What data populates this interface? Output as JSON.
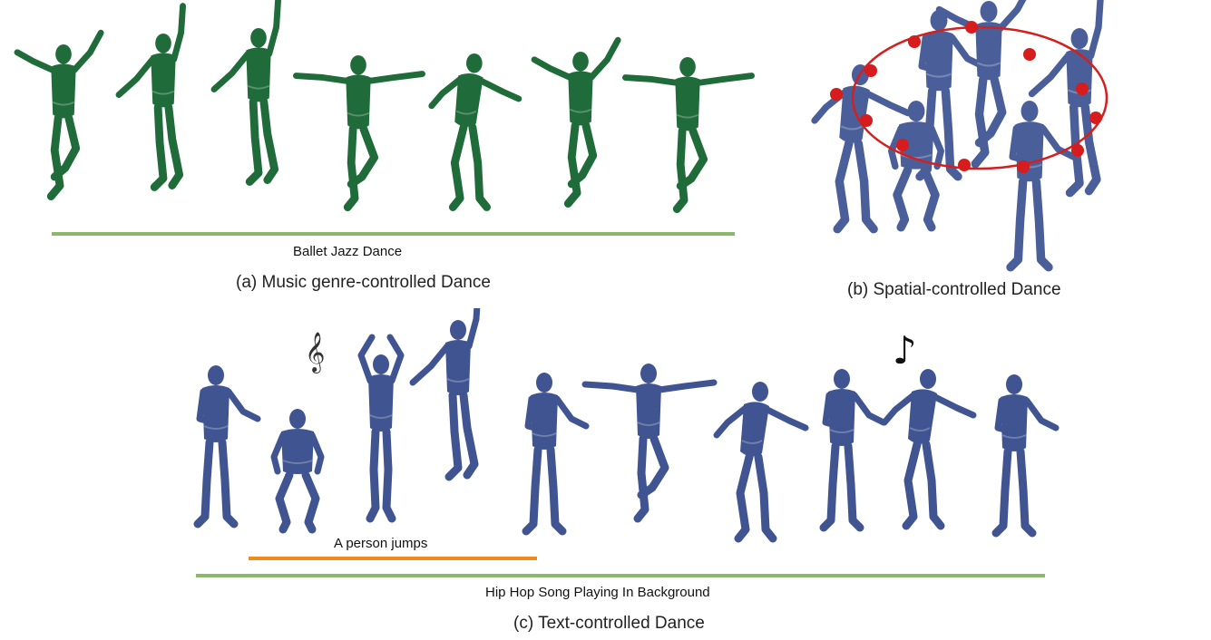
{
  "panel_a": {
    "caption": "(a) Music genre-controlled Dance",
    "bar_label": "Ballet Jazz Dance",
    "figure_color": "#1f6b3a",
    "bar_color": "#8bb96b"
  },
  "panel_b": {
    "caption": "(b) Spatial-controlled Dance",
    "figure_color": "#4a5f9a",
    "path_color": "#d41f1f",
    "marker_color": "#d61c1c"
  },
  "panel_c": {
    "caption": "(c) Text-controlled Dance",
    "text_label": "A person jumps",
    "music_label": "Hip Hop Song Playing In Background",
    "figure_color": "#3f5490",
    "text_bar_color": "#f08a1c",
    "music_bar_color": "#8bb96b",
    "treble_clef_glyph": "𝄞",
    "music_note_glyph": "♪"
  }
}
